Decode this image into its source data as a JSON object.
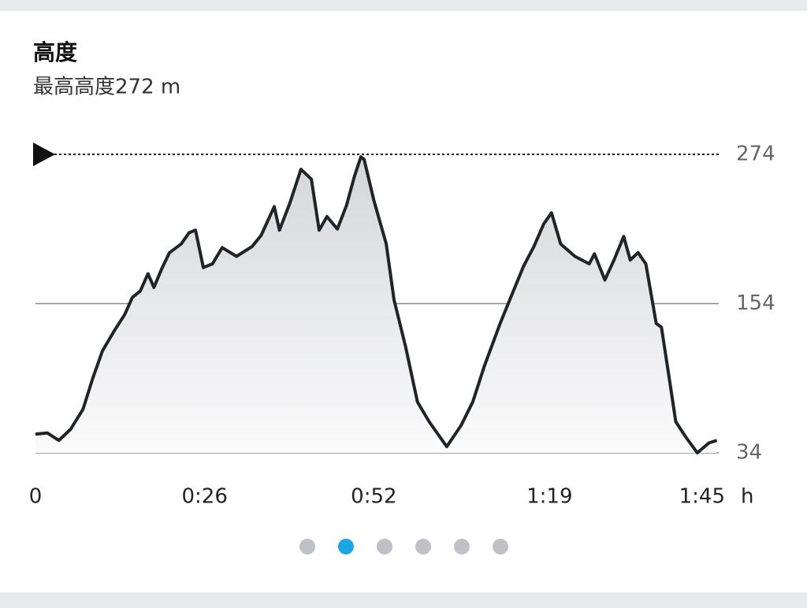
{
  "chart_data": {
    "type": "area",
    "title": "高度",
    "subtitle": "最高高度272  m",
    "xlabel": "h",
    "color": "#1f2428",
    "x": [
      0,
      1.8,
      3.6,
      5.4,
      7.3,
      8.8,
      10.3,
      12.1,
      13.7,
      14.9,
      16.1,
      17.3,
      18.2,
      19.4,
      20.6,
      22.4,
      23.6,
      24.6,
      25.8,
      27.2,
      28.7,
      30.9,
      33.3,
      34.7,
      36.7,
      37.5,
      39.1,
      40.8,
      42.4,
      43.6,
      44.8,
      46.4,
      47.8,
      49,
      50,
      50.5,
      52,
      53.9,
      55.1,
      56.9,
      58.7,
      60.5,
      63.2,
      65.4,
      67.2,
      69,
      71.4,
      73.2,
      75,
      76.6,
      78.1,
      79.3,
      80.7,
      82.9,
      85.1,
      85.9,
      87.5,
      88.9,
      90.4,
      91.4,
      92.6,
      93.8,
      95.4,
      96.2,
      97.4,
      98.4,
      99.9,
      101.7,
      103.5,
      104.7
    ],
    "values": [
      49,
      50,
      44,
      53,
      69,
      94,
      116,
      132,
      145,
      159,
      164,
      178,
      167,
      182,
      195,
      202,
      211,
      213,
      183,
      186,
      199,
      192,
      200,
      209,
      232,
      213,
      235,
      262,
      254,
      213,
      224,
      214,
      233,
      256,
      272,
      270,
      237,
      202,
      157,
      119,
      75,
      59,
      39,
      56,
      75,
      104,
      138,
      161,
      184,
      200,
      218,
      227,
      202,
      192,
      186,
      194,
      173,
      189,
      208,
      189,
      195,
      186,
      138,
      135,
      94,
      59,
      47,
      34,
      42,
      44
    ],
    "xlim": [
      0,
      105
    ],
    "xticks": [
      0,
      {
        "value": 26,
        "label": "0:26"
      },
      {
        "value": 52,
        "label": "0:52"
      },
      {
        "value": 79,
        "label": "1:19"
      },
      {
        "value": 105,
        "label": "1:45"
      }
    ],
    "ylim": [
      34,
      274
    ],
    "yticks": [
      34,
      154,
      274
    ],
    "grid": true
  }
}
